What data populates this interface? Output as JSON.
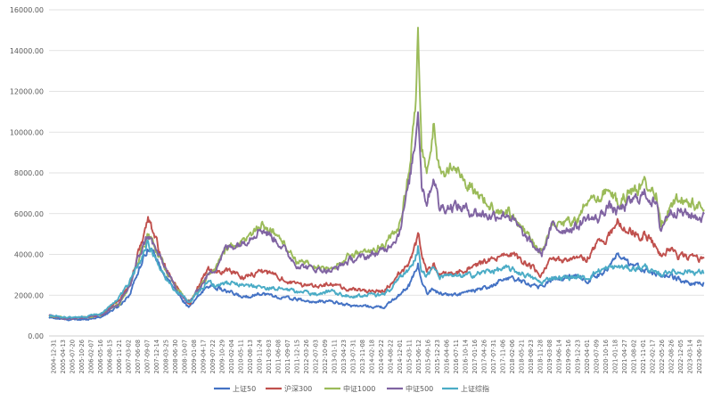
{
  "chart_data": {
    "type": "line",
    "title": "",
    "xlabel": "",
    "ylabel": "",
    "ylim": [
      0,
      16000
    ],
    "yticks": [
      "0.00",
      "2000.00",
      "4000.00",
      "6000.00",
      "8000.00",
      "10000.00",
      "12000.00",
      "14000.00",
      "16000.00"
    ],
    "ytick_values": [
      0,
      2000,
      4000,
      6000,
      8000,
      10000,
      12000,
      14000,
      16000
    ],
    "grid": true,
    "legend_position": "bottom",
    "x_labels": [
      "2004-12-31",
      "2005-04-13",
      "2005-07-20",
      "2005-10-26",
      "2006-02-07",
      "2006-05-16",
      "2006-08-15",
      "2006-11-21",
      "2007-03-02",
      "2007-06-08",
      "2007-09-07",
      "2007-12-14",
      "2008-03-25",
      "2008-06-30",
      "2008-10-07",
      "2009-01-08",
      "2009-04-17",
      "2009-07-22",
      "2009-10-29",
      "2010-02-04",
      "2010-05-11",
      "2010-08-13",
      "2010-11-24",
      "2011-03-03",
      "2011-06-08",
      "2011-09-07",
      "2011-12-15",
      "2012-03-26",
      "2012-07-03",
      "2012-10-09",
      "2013-01-11",
      "2013-04-23",
      "2013-07-31",
      "2013-11-08",
      "2014-02-18",
      "2014-05-22",
      "2014-08-22",
      "2014-12-01",
      "2015-03-11",
      "2015-06-12",
      "2015-09-16",
      "2015-12-23",
      "2016-04-06",
      "2016-07-11",
      "2016-10-14",
      "2017-01-16",
      "2017-04-26",
      "2017-07-31",
      "2017-11-06",
      "2018-02-06",
      "2018-05-21",
      "2018-08-23",
      "2018-11-28",
      "2019-03-08",
      "2019-06-14",
      "2019-09-16",
      "2019-12-23",
      "2020-04-01",
      "2020-07-09",
      "2020-10-16",
      "2021-01-18",
      "2021-04-27",
      "2021-08-02",
      "2021-11-01",
      "2022-02-17",
      "2022-05-26",
      "2022-08-26",
      "2022-12-05",
      "2023-03-14",
      "2023-06-19"
    ],
    "anchor_years": [
      2005.0,
      2005.5,
      2006.0,
      2006.5,
      2007.0,
      2007.3,
      2007.5,
      2007.8,
      2008.0,
      2008.3,
      2008.5,
      2008.9,
      2009.0,
      2009.5,
      2009.7,
      2010.0,
      2010.5,
      2011.0,
      2011.5,
      2012.0,
      2012.5,
      2013.0,
      2013.5,
      2014.0,
      2014.5,
      2014.9,
      2015.2,
      2015.4,
      2015.45,
      2015.55,
      2015.7,
      2015.9,
      2016.05,
      2016.5,
      2017.0,
      2017.5,
      2018.0,
      2018.5,
      2018.95,
      2019.25,
      2019.5,
      2020.0,
      2020.2,
      2020.55,
      2020.8,
      2021.1,
      2021.5,
      2021.9,
      2022.2,
      2022.32,
      2022.55,
      2022.8,
      2023.0,
      2023.5
    ],
    "series": [
      {
        "name": "上证50",
        "color": "#4472c4",
        "values": [
          900,
          800,
          800,
          950,
          1500,
          2100,
          3100,
          4400,
          3900,
          2900,
          2400,
          1500,
          1450,
          2500,
          2400,
          2200,
          1900,
          2100,
          1900,
          1800,
          1650,
          1700,
          1500,
          1450,
          1400,
          2000,
          2500,
          3300,
          3600,
          2600,
          2100,
          2300,
          2100,
          2000,
          2200,
          2400,
          2900,
          2600,
          2400,
          2800,
          2800,
          3000,
          2700,
          3000,
          3300,
          3900,
          3400,
          3300,
          3000,
          3000,
          2900,
          2800,
          2600,
          2600
        ]
      },
      {
        "name": "沪深300",
        "color": "#c0504d",
        "values": [
          1000,
          850,
          900,
          1050,
          1800,
          2600,
          3900,
          5700,
          4800,
          3300,
          2700,
          1700,
          1650,
          3300,
          3000,
          3300,
          2900,
          3200,
          2900,
          2500,
          2500,
          2500,
          2300,
          2200,
          2200,
          3000,
          3600,
          4600,
          5300,
          3800,
          3200,
          3500,
          3000,
          3100,
          3400,
          3700,
          4100,
          3600,
          3000,
          3800,
          3700,
          4000,
          3700,
          4600,
          4800,
          5600,
          5100,
          4900,
          4400,
          4000,
          4300,
          3900,
          3900,
          3700
        ]
      },
      {
        "name": "中证1000",
        "color": "#9bbb59",
        "values": [
          1000,
          850,
          900,
          1050,
          1600,
          2500,
          3600,
          5000,
          4300,
          3300,
          2600,
          1650,
          1700,
          3000,
          3300,
          4300,
          4600,
          5500,
          4900,
          3700,
          3400,
          3300,
          3900,
          4100,
          4500,
          5400,
          8000,
          12000,
          15000,
          9000,
          7700,
          10500,
          8000,
          8200,
          7300,
          6300,
          6100,
          5000,
          4100,
          5600,
          5500,
          5700,
          6500,
          6600,
          7200,
          6600,
          7100,
          7500,
          7000,
          5400,
          6300,
          6700,
          6600,
          6300
        ]
      },
      {
        "name": "中证500",
        "color": "#8064a2",
        "values": [
          1000,
          850,
          900,
          1050,
          1600,
          2500,
          3700,
          5000,
          4300,
          3300,
          2600,
          1650,
          1700,
          3000,
          3300,
          4300,
          4600,
          5300,
          4600,
          3500,
          3300,
          3200,
          3700,
          3900,
          4200,
          5000,
          7500,
          10000,
          11500,
          7500,
          6600,
          7900,
          6300,
          6400,
          6100,
          5900,
          6000,
          4800,
          4000,
          5400,
          5200,
          5400,
          5800,
          5700,
          6400,
          6100,
          6600,
          7000,
          6400,
          5200,
          6100,
          6200,
          6000,
          5800
        ]
      },
      {
        "name": "上证综指",
        "color": "#4bacc6",
        "values": [
          1000,
          900,
          950,
          1100,
          1900,
          2700,
          3400,
          4600,
          3900,
          2800,
          2400,
          1750,
          1700,
          2700,
          2500,
          2600,
          2500,
          2400,
          2300,
          2200,
          2050,
          2200,
          1950,
          2000,
          2000,
          2800,
          3200,
          4000,
          4400,
          3200,
          3000,
          3300,
          2900,
          2900,
          3000,
          3200,
          3300,
          3000,
          2600,
          2900,
          2850,
          2900,
          2800,
          3200,
          3300,
          3400,
          3300,
          3400,
          3000,
          3000,
          3200,
          3100,
          3200,
          3100
        ]
      }
    ]
  }
}
